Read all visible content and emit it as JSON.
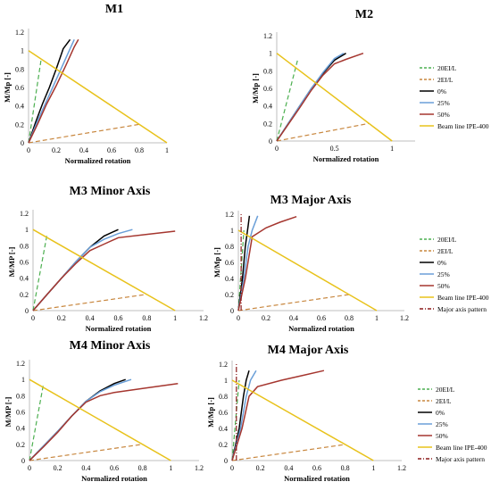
{
  "chart_data": [
    {
      "type": "line",
      "title": "M1",
      "xlabel": "Normalized rotation",
      "ylabel": "M/Mp [-]",
      "xlim": [
        0,
        1
      ],
      "ylim": [
        0,
        1.2
      ],
      "xticks": [
        0,
        0.2,
        0.4,
        0.6,
        0.8,
        1
      ],
      "xtick_labels": [
        "0",
        "0.2",
        "0.4",
        "0.6",
        "0.8",
        "1"
      ],
      "yticks": [
        0,
        0.2,
        0.4,
        0.6,
        0.8,
        1,
        1.2
      ],
      "ytick_labels": [
        "0",
        "0.2",
        "0.4",
        "0.6",
        "0.8",
        "1",
        "1.2"
      ],
      "legend": null,
      "series": [
        {
          "name": "20EI/L",
          "color": "#4caf50",
          "dash": "5,3",
          "x": [
            0,
            0.09
          ],
          "y": [
            0,
            0.9
          ]
        },
        {
          "name": "2EI/L",
          "color": "#c8873f",
          "dash": "5,3",
          "x": [
            0,
            0.8
          ],
          "y": [
            0,
            0.2
          ]
        },
        {
          "name": "0%",
          "color": "#000000",
          "dash": "",
          "x": [
            0,
            0.05,
            0.1,
            0.15,
            0.2,
            0.25,
            0.3
          ],
          "y": [
            0,
            0.22,
            0.42,
            0.6,
            0.8,
            1.02,
            1.12
          ]
        },
        {
          "name": "25%",
          "color": "#6a9fd8",
          "dash": "",
          "x": [
            0,
            0.06,
            0.12,
            0.18,
            0.24,
            0.3,
            0.33
          ],
          "y": [
            0,
            0.22,
            0.42,
            0.62,
            0.82,
            1.02,
            1.12
          ]
        },
        {
          "name": "50%",
          "color": "#a5362f",
          "dash": "",
          "x": [
            0,
            0.07,
            0.13,
            0.2,
            0.27,
            0.33,
            0.36
          ],
          "y": [
            0,
            0.22,
            0.42,
            0.62,
            0.84,
            1.04,
            1.12
          ]
        },
        {
          "name": "Beam line IPE-400",
          "color": "#e8c21b",
          "dash": "",
          "x": [
            0,
            1
          ],
          "y": [
            1,
            0
          ]
        }
      ]
    },
    {
      "type": "line",
      "title": "M2",
      "xlabel": "Normalized rotation",
      "ylabel": "M/Mp [-]",
      "xlim": [
        0,
        1.2
      ],
      "ylim": [
        0,
        1.2
      ],
      "xticks": [
        0,
        0.5,
        1
      ],
      "xtick_labels": [
        "0",
        "0.5",
        "1"
      ],
      "yticks": [
        0,
        0.2,
        0.4,
        0.6,
        0.8,
        1,
        1.2
      ],
      "ytick_labels": [
        "0",
        "0.2",
        "0.4",
        "0.6",
        "0.8",
        "1",
        "1.2"
      ],
      "legend": "right",
      "series": [
        {
          "name": "20EI/L",
          "color": "#4caf50",
          "dash": "5,3",
          "x": [
            0,
            0.18
          ],
          "y": [
            0,
            0.92
          ]
        },
        {
          "name": "2EI/L",
          "color": "#c8873f",
          "dash": "5,3",
          "x": [
            0,
            0.8
          ],
          "y": [
            0,
            0.2
          ]
        },
        {
          "name": "0%",
          "color": "#000000",
          "dash": "",
          "x": [
            0,
            0.1,
            0.2,
            0.3,
            0.4,
            0.5,
            0.6
          ],
          "y": [
            0,
            0.2,
            0.4,
            0.6,
            0.77,
            0.92,
            1.0
          ]
        },
        {
          "name": "25%",
          "color": "#6a9fd8",
          "dash": "",
          "x": [
            0,
            0.1,
            0.2,
            0.3,
            0.4,
            0.5,
            0.58
          ],
          "y": [
            0,
            0.2,
            0.4,
            0.6,
            0.78,
            0.94,
            1.0
          ]
        },
        {
          "name": "50%",
          "color": "#a5362f",
          "dash": "",
          "x": [
            0,
            0.1,
            0.2,
            0.3,
            0.4,
            0.5,
            0.6,
            0.75
          ],
          "y": [
            0,
            0.19,
            0.38,
            0.58,
            0.75,
            0.88,
            0.93,
            1.0
          ]
        },
        {
          "name": "Beam line IPE-400",
          "color": "#e8c21b",
          "dash": "",
          "x": [
            0,
            1
          ],
          "y": [
            1,
            0
          ]
        }
      ]
    },
    {
      "type": "line",
      "title": "M3 Minor Axis",
      "xlabel": "Normalized rotation",
      "ylabel": "M/MP [-]",
      "xlim": [
        0,
        1.2
      ],
      "ylim": [
        0,
        1.2
      ],
      "xticks": [
        0,
        0.2,
        0.4,
        0.6,
        0.8,
        1,
        1.2
      ],
      "xtick_labels": [
        "0",
        "0.2",
        "0.4",
        "0.6",
        "0.8",
        "1",
        "1.2"
      ],
      "yticks": [
        0,
        0.2,
        0.4,
        0.6,
        0.8,
        1,
        1.2
      ],
      "ytick_labels": [
        "0",
        "0.2",
        "0.4",
        "0.6",
        "0.8",
        "1",
        "1.2"
      ],
      "legend": null,
      "series": [
        {
          "name": "20EI/L",
          "color": "#4caf50",
          "dash": "5,3",
          "x": [
            0,
            0.1
          ],
          "y": [
            0,
            0.95
          ]
        },
        {
          "name": "2EI/L",
          "color": "#c8873f",
          "dash": "5,3",
          "x": [
            0,
            0.8
          ],
          "y": [
            0,
            0.2
          ]
        },
        {
          "name": "0%",
          "color": "#000000",
          "dash": "",
          "x": [
            0,
            0.1,
            0.2,
            0.3,
            0.4,
            0.5,
            0.6
          ],
          "y": [
            0,
            0.2,
            0.4,
            0.6,
            0.78,
            0.92,
            1.0
          ]
        },
        {
          "name": "25%",
          "color": "#6a9fd8",
          "dash": "",
          "x": [
            0,
            0.1,
            0.2,
            0.3,
            0.4,
            0.5,
            0.6,
            0.7
          ],
          "y": [
            0,
            0.2,
            0.4,
            0.6,
            0.78,
            0.88,
            0.95,
            1.0
          ]
        },
        {
          "name": "50%",
          "color": "#a5362f",
          "dash": "",
          "x": [
            0,
            0.1,
            0.2,
            0.3,
            0.4,
            0.5,
            0.6,
            0.8,
            1.0
          ],
          "y": [
            0,
            0.2,
            0.4,
            0.58,
            0.74,
            0.82,
            0.9,
            0.94,
            0.98
          ]
        },
        {
          "name": "Beam line IPE-400",
          "color": "#e8c21b",
          "dash": "",
          "x": [
            0,
            1
          ],
          "y": [
            1,
            0
          ]
        }
      ]
    },
    {
      "type": "line",
      "title": "M3 Major Axis",
      "xlabel": "Normalized rotation",
      "ylabel": "M/Mp [-]",
      "xlim": [
        0,
        1.2
      ],
      "ylim": [
        0,
        1.2
      ],
      "xticks": [
        0,
        0.2,
        0.4,
        0.6,
        0.8,
        1,
        1.2
      ],
      "xtick_labels": [
        "0",
        "0.2",
        "0.4",
        "0.6",
        "0.8",
        "1",
        "1.2"
      ],
      "yticks": [
        0,
        0.2,
        0.4,
        0.6,
        0.8,
        1,
        1.2
      ],
      "ytick_labels": [
        "0",
        "0.2",
        "0.4",
        "0.6",
        "0.8",
        "1",
        "1.2"
      ],
      "legend": "right",
      "series": [
        {
          "name": "20EI/L",
          "color": "#4caf50",
          "dash": "5,3",
          "x": [
            0,
            0.04
          ],
          "y": [
            0,
            1.0
          ]
        },
        {
          "name": "2EI/L",
          "color": "#c8873f",
          "dash": "5,3",
          "x": [
            0,
            0.8
          ],
          "y": [
            0,
            0.2
          ]
        },
        {
          "name": "0%",
          "color": "#000000",
          "dash": "",
          "x": [
            0,
            0.03,
            0.05,
            0.07,
            0.08
          ],
          "y": [
            0,
            0.4,
            0.8,
            1.05,
            1.18
          ]
        },
        {
          "name": "25%",
          "color": "#6a9fd8",
          "dash": "",
          "x": [
            0,
            0.04,
            0.07,
            0.1,
            0.14
          ],
          "y": [
            0,
            0.4,
            0.8,
            1.0,
            1.18
          ]
        },
        {
          "name": "50%",
          "color": "#a5362f",
          "dash": "",
          "x": [
            0,
            0.05,
            0.1,
            0.2,
            0.3,
            0.42
          ],
          "y": [
            0,
            0.4,
            0.92,
            1.03,
            1.1,
            1.17
          ]
        },
        {
          "name": "Beam line IPE-400",
          "color": "#e8c21b",
          "dash": "",
          "x": [
            0,
            1
          ],
          "y": [
            1,
            0
          ]
        },
        {
          "name": "Major axis pattern",
          "color": "#8b1a1a",
          "dash": "6,2,1,2",
          "x": [
            0.02,
            0.02
          ],
          "y": [
            0,
            1.2
          ]
        }
      ]
    },
    {
      "type": "line",
      "title": "M4 Minor Axis",
      "xlabel": "Normalized rotation",
      "ylabel": "M/MP [-]",
      "xlim": [
        0,
        1.2
      ],
      "ylim": [
        0,
        1.2
      ],
      "xticks": [
        0,
        0.2,
        0.4,
        0.6,
        0.8,
        1,
        1.2
      ],
      "xtick_labels": [
        "0",
        "0.2",
        "0.4",
        "0.6",
        "0.8",
        "1",
        "1.2"
      ],
      "yticks": [
        0,
        0.2,
        0.4,
        0.6,
        0.8,
        1,
        1.2
      ],
      "ytick_labels": [
        "0",
        "0.2",
        "0.4",
        "0.6",
        "0.8",
        "1",
        "1.2"
      ],
      "legend": null,
      "series": [
        {
          "name": "20EI/L",
          "color": "#4caf50",
          "dash": "5,3",
          "x": [
            0,
            0.1
          ],
          "y": [
            0,
            0.95
          ]
        },
        {
          "name": "2EI/L",
          "color": "#c8873f",
          "dash": "5,3",
          "x": [
            0,
            0.8
          ],
          "y": [
            0,
            0.2
          ]
        },
        {
          "name": "0%",
          "color": "#000000",
          "dash": "",
          "x": [
            0,
            0.1,
            0.2,
            0.3,
            0.4,
            0.5,
            0.6,
            0.68
          ],
          "y": [
            0,
            0.18,
            0.36,
            0.55,
            0.73,
            0.86,
            0.95,
            1.0
          ]
        },
        {
          "name": "25%",
          "color": "#6a9fd8",
          "dash": "",
          "x": [
            0,
            0.1,
            0.2,
            0.3,
            0.4,
            0.5,
            0.6,
            0.72
          ],
          "y": [
            0,
            0.18,
            0.36,
            0.55,
            0.73,
            0.85,
            0.93,
            1.0
          ]
        },
        {
          "name": "50%",
          "color": "#a5362f",
          "dash": "",
          "x": [
            0,
            0.1,
            0.2,
            0.3,
            0.4,
            0.5,
            0.6,
            0.8,
            1.05
          ],
          "y": [
            0,
            0.17,
            0.35,
            0.55,
            0.72,
            0.8,
            0.84,
            0.89,
            0.95
          ]
        },
        {
          "name": "Beam line IPE-400",
          "color": "#e8c21b",
          "dash": "",
          "x": [
            0,
            1
          ],
          "y": [
            1,
            0
          ]
        }
      ]
    },
    {
      "type": "line",
      "title": "M4 Major Axis",
      "xlabel": "Normalized rotation",
      "ylabel": "M/Mp [-]",
      "xlim": [
        0,
        1.2
      ],
      "ylim": [
        0,
        1.2
      ],
      "xticks": [
        0,
        0.2,
        0.4,
        0.6,
        0.8,
        1,
        1.2
      ],
      "xtick_labels": [
        "0",
        "0.2",
        "0.4",
        "0.6",
        "0.8",
        "1",
        "1.2"
      ],
      "yticks": [
        0,
        0.2,
        0.4,
        0.6,
        0.8,
        1,
        1.2
      ],
      "ytick_labels": [
        "0",
        "0.2",
        "0.4",
        "0.6",
        "0.8",
        "1",
        "1.2"
      ],
      "legend": "right",
      "series": [
        {
          "name": "20EI/L",
          "color": "#4caf50",
          "dash": "5,3",
          "x": [
            0,
            0.05
          ],
          "y": [
            0,
            1.0
          ]
        },
        {
          "name": "2EI/L",
          "color": "#c8873f",
          "dash": "5,3",
          "x": [
            0,
            0.8
          ],
          "y": [
            0,
            0.2
          ]
        },
        {
          "name": "0%",
          "color": "#000000",
          "dash": "",
          "x": [
            0,
            0.05,
            0.08,
            0.1,
            0.12
          ],
          "y": [
            0,
            0.4,
            0.8,
            1.0,
            1.12
          ]
        },
        {
          "name": "25%",
          "color": "#6a9fd8",
          "dash": "",
          "x": [
            0,
            0.06,
            0.1,
            0.13,
            0.17
          ],
          "y": [
            0,
            0.4,
            0.8,
            1.0,
            1.12
          ]
        },
        {
          "name": "50%",
          "color": "#a5362f",
          "dash": "",
          "x": [
            0,
            0.07,
            0.12,
            0.18,
            0.35,
            0.5,
            0.65
          ],
          "y": [
            0,
            0.4,
            0.8,
            0.92,
            1.0,
            1.06,
            1.12
          ]
        },
        {
          "name": "Beam line IPE-400",
          "color": "#e8c21b",
          "dash": "",
          "x": [
            0,
            1
          ],
          "y": [
            1,
            0
          ]
        },
        {
          "name": "Major axis pattern",
          "color": "#8b1a1a",
          "dash": "6,2,1,2",
          "x": [
            0.03,
            0.03
          ],
          "y": [
            0,
            1.2
          ]
        }
      ]
    }
  ]
}
